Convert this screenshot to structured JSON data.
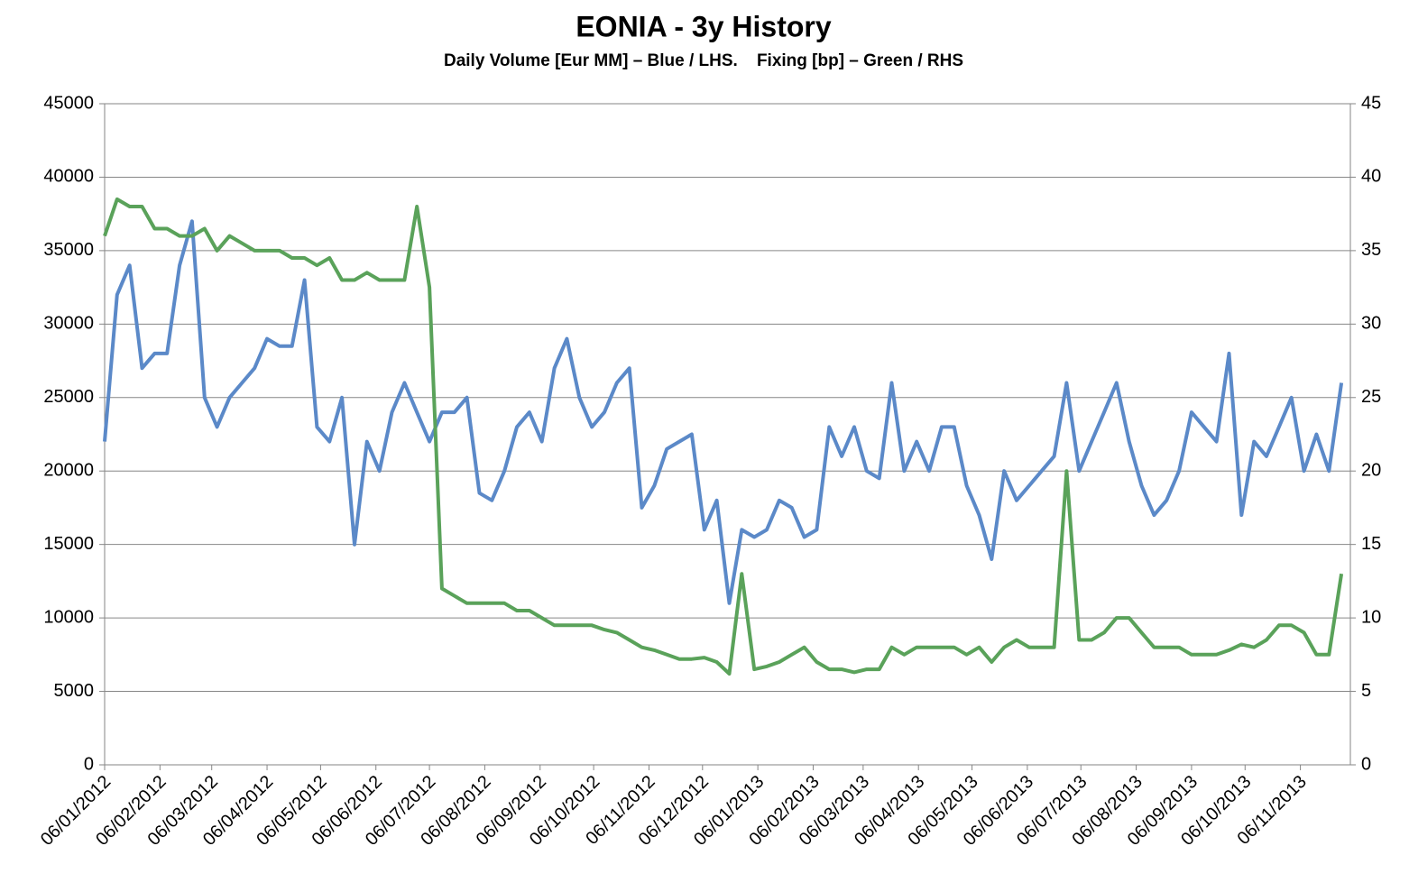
{
  "chart_data": {
    "type": "line",
    "title": "EONIA - 3y History",
    "subtitle": "Daily Volume [Eur MM] – Blue / LHS.    Fixing [bp] – Green / RHS",
    "x": [
      "06/01/2012",
      "13/01/2012",
      "20/01/2012",
      "27/01/2012",
      "03/02/2012",
      "10/02/2012",
      "17/02/2012",
      "24/02/2012",
      "02/03/2012",
      "09/03/2012",
      "16/03/2012",
      "23/03/2012",
      "30/03/2012",
      "06/04/2012",
      "13/04/2012",
      "20/04/2012",
      "27/04/2012",
      "04/05/2012",
      "11/05/2012",
      "18/05/2012",
      "25/05/2012",
      "01/06/2012",
      "08/06/2012",
      "15/06/2012",
      "22/06/2012",
      "29/06/2012",
      "06/07/2012",
      "13/07/2012",
      "20/07/2012",
      "27/07/2012",
      "03/08/2012",
      "10/08/2012",
      "17/08/2012",
      "24/08/2012",
      "31/08/2012",
      "07/09/2012",
      "14/09/2012",
      "21/09/2012",
      "28/09/2012",
      "05/10/2012",
      "12/10/2012",
      "19/10/2012",
      "26/10/2012",
      "02/11/2012",
      "09/11/2012",
      "16/11/2012",
      "23/11/2012",
      "30/11/2012",
      "07/12/2012",
      "14/12/2012",
      "21/12/2012",
      "28/12/2012",
      "04/01/2013",
      "11/01/2013",
      "18/01/2013",
      "25/01/2013",
      "01/02/2013",
      "08/02/2013",
      "15/02/2013",
      "22/02/2013",
      "01/03/2013",
      "08/03/2013",
      "15/03/2013",
      "22/03/2013",
      "29/03/2013",
      "05/04/2013",
      "12/04/2013",
      "19/04/2013",
      "26/04/2013",
      "03/05/2013",
      "10/05/2013",
      "17/05/2013",
      "24/05/2013",
      "31/05/2013",
      "07/06/2013",
      "14/06/2013",
      "21/06/2013",
      "28/06/2013",
      "05/07/2013",
      "12/07/2013",
      "19/07/2013",
      "26/07/2013",
      "02/08/2013",
      "09/08/2013",
      "16/08/2013",
      "23/08/2013",
      "30/08/2013",
      "06/09/2013",
      "13/09/2013",
      "20/09/2013",
      "27/09/2013",
      "04/10/2013",
      "11/10/2013",
      "18/10/2013",
      "25/10/2013",
      "01/11/2013",
      "08/11/2013",
      "15/11/2013",
      "22/11/2013",
      "29/11/2013"
    ],
    "series": [
      {
        "name": "Daily Volume",
        "color": "#5b89c8",
        "values": [
          22000,
          32000,
          34000,
          27000,
          28000,
          28000,
          34000,
          37000,
          25000,
          23000,
          25000,
          26000,
          27000,
          29000,
          28500,
          28500,
          33000,
          23000,
          22000,
          25000,
          15000,
          22000,
          20000,
          24000,
          26000,
          24000,
          22000,
          24000,
          24000,
          25000,
          18500,
          18000,
          20000,
          23000,
          24000,
          22000,
          27000,
          29000,
          25000,
          23000,
          24000,
          26000,
          27000,
          17500,
          19000,
          21500,
          22000,
          22500,
          16000,
          18000,
          11000,
          16000,
          15500,
          16000,
          18000,
          17500,
          15500,
          16000,
          23000,
          21000,
          23000,
          20000,
          19500,
          26000,
          20000,
          22000,
          20000,
          23000,
          23000,
          19000,
          17000,
          14000,
          20000,
          18000,
          19000,
          20000,
          21000,
          26000,
          20000,
          22000,
          24000,
          26000,
          22000,
          19000,
          17000,
          18000,
          20000,
          24000,
          23000,
          22000,
          28000,
          17000,
          22000,
          21000,
          23000,
          25000,
          20000,
          22500,
          20000,
          26000
        ]
      },
      {
        "name": "Fixing",
        "color": "#5aa25a",
        "axis": "y2",
        "values": [
          36,
          38.5,
          38,
          38,
          36.5,
          36.5,
          36,
          36,
          36.5,
          35,
          36,
          35.5,
          35,
          35,
          35,
          34.5,
          34.5,
          34,
          34.5,
          33,
          33,
          33.5,
          33,
          33,
          33,
          38,
          32.5,
          12,
          11.5,
          11,
          11,
          11,
          11,
          10.5,
          10.5,
          10,
          9.5,
          9.5,
          9.5,
          9.5,
          9.2,
          9,
          8.5,
          8,
          7.8,
          7.5,
          7.2,
          7.2,
          7.3,
          7,
          6.2,
          13,
          6.5,
          6.7,
          7,
          7.5,
          8,
          7,
          6.5,
          6.5,
          6.3,
          6.5,
          6.5,
          8,
          7.5,
          8,
          8,
          8,
          8,
          7.5,
          8,
          7,
          8,
          8.5,
          8,
          8,
          8,
          20,
          8.5,
          8.5,
          9,
          10,
          10,
          9,
          8,
          8,
          8,
          7.5,
          7.5,
          7.5,
          7.8,
          8.2,
          8,
          8.5,
          9.5,
          9.5,
          9,
          7.5,
          7.5,
          13
        ]
      }
    ],
    "xlim": [
      "06/01/2012",
      "04/12/2013"
    ],
    "xticks": [
      "06/01/2012",
      "06/02/2012",
      "06/03/2012",
      "06/04/2012",
      "06/05/2012",
      "06/06/2012",
      "06/07/2012",
      "06/08/2012",
      "06/09/2012",
      "06/10/2012",
      "06/11/2012",
      "06/12/2012",
      "06/01/2013",
      "06/02/2013",
      "06/03/2013",
      "06/04/2013",
      "06/05/2013",
      "06/06/2013",
      "06/07/2013",
      "06/08/2013",
      "06/09/2013",
      "06/10/2013",
      "06/11/2013"
    ],
    "ylim": [
      0,
      45000
    ],
    "yticks": [
      0,
      5000,
      10000,
      15000,
      20000,
      25000,
      30000,
      35000,
      40000,
      45000
    ],
    "y2lim": [
      0,
      45
    ],
    "y2ticks": [
      0,
      5,
      10,
      15,
      20,
      25,
      30,
      35,
      40,
      45
    ],
    "grid": true
  }
}
